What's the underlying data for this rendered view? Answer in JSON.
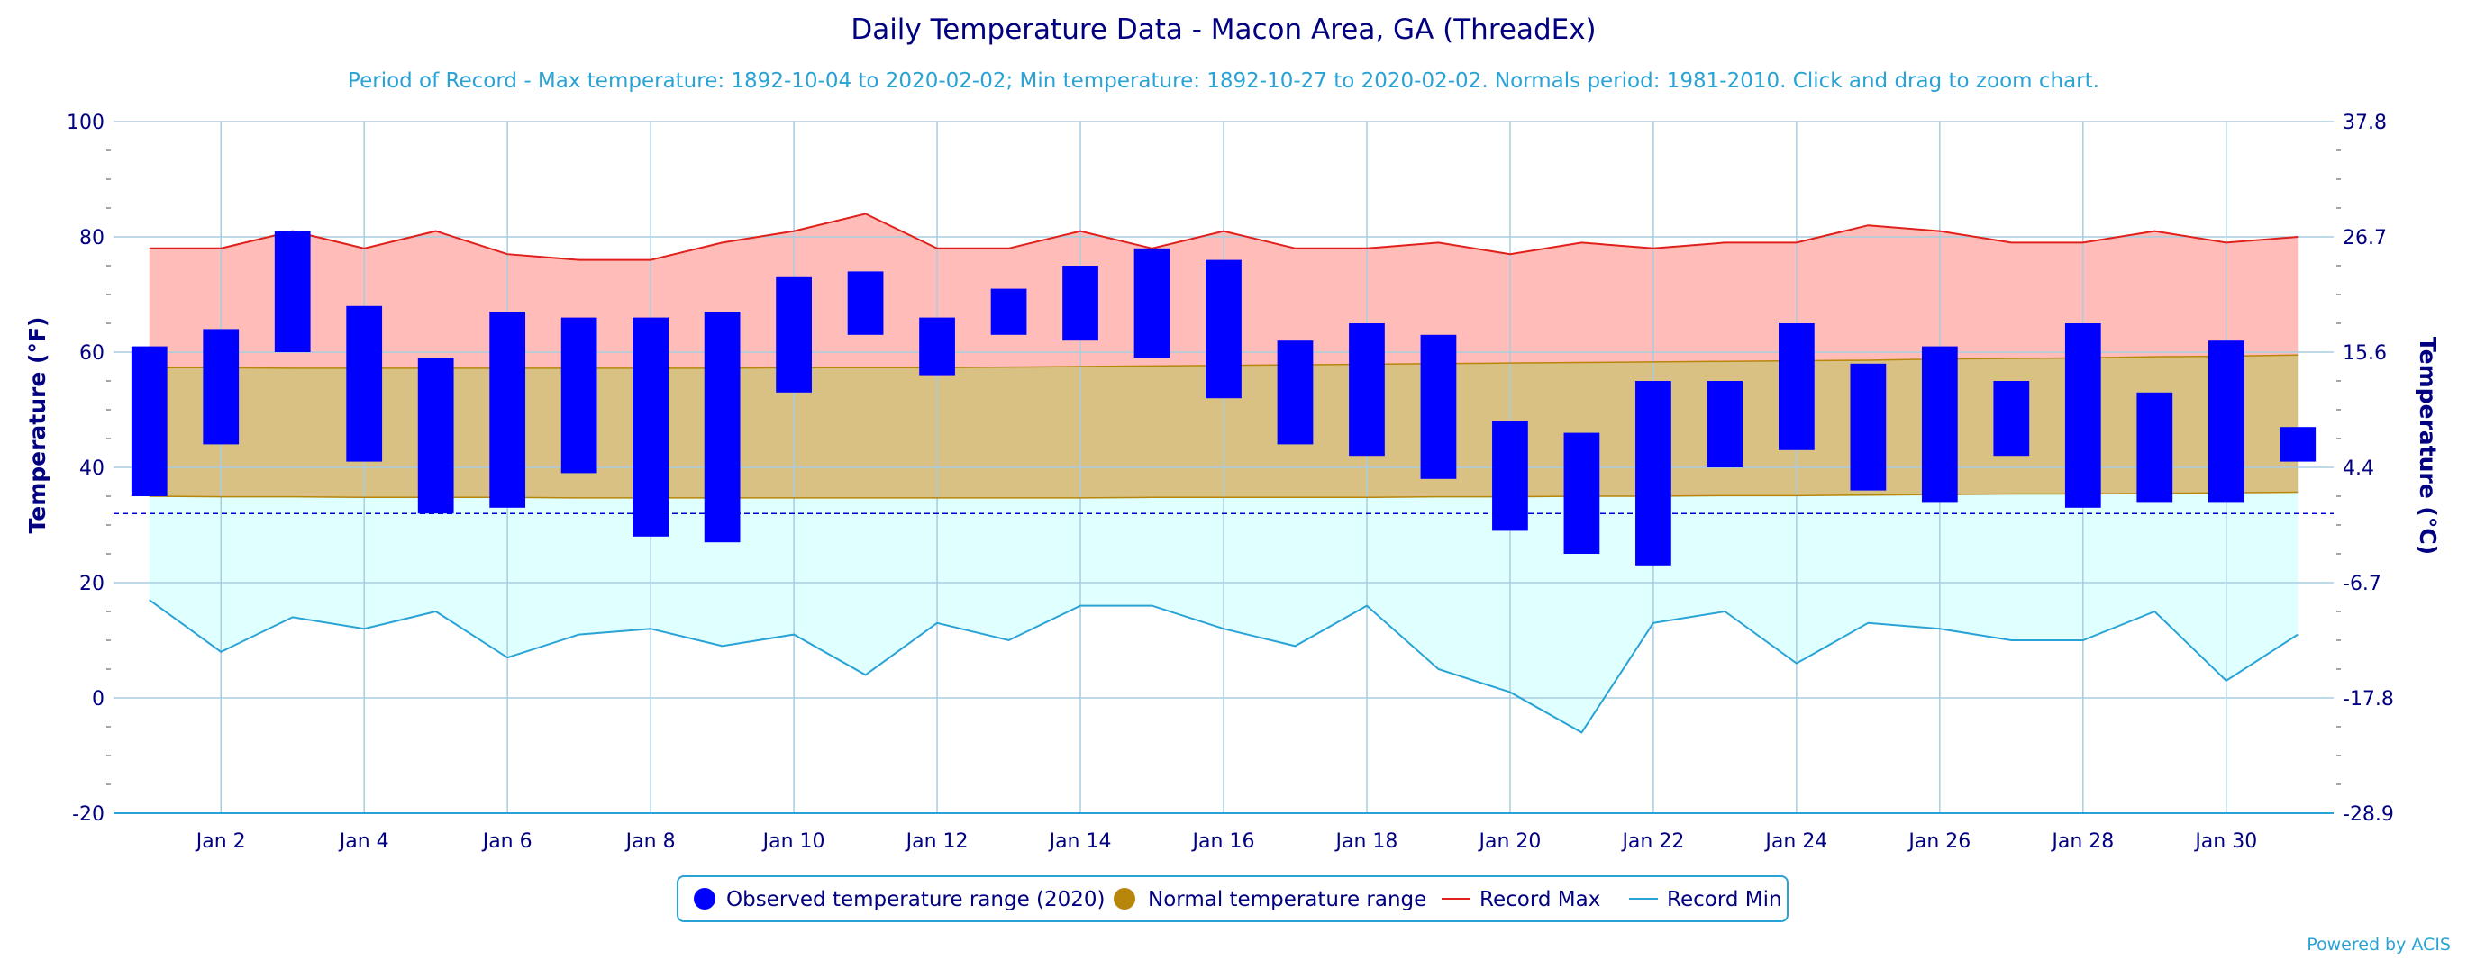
{
  "colors": {
    "observed": "#0000ff",
    "normal": "#b8860b",
    "normal_fill": "#d9c083",
    "record_max": "#e0201b",
    "record_max_fill": "#ffbcb8",
    "record_min": "#29a3d6",
    "record_min_fill": "#e0ffff",
    "text": "#000080",
    "grid": "#a8cde0"
  },
  "chart_data": {
    "type": "bar",
    "title": "Daily Temperature Data - Macon Area, GA (ThreadEx)",
    "subtitle": "Period of Record - Max temperature: 1892-10-04 to 2020-02-02; Min temperature: 1892-10-27 to 2020-02-02. Normals period: 1981-2010. Click and drag to zoom chart.",
    "ylabel": "Temperature (°F)",
    "ylabel_right": "Temperature (°C)",
    "ylim": [
      -20,
      100
    ],
    "y_ticks": [
      -20,
      0,
      20,
      40,
      60,
      80,
      100
    ],
    "y_right_ticks": [
      "-28.9",
      "-17.8",
      "-6.7",
      "4.4",
      "15.6",
      "26.7",
      "37.8"
    ],
    "x_range": [
      0.5,
      31.5
    ],
    "x_tick_days": [
      2,
      4,
      6,
      8,
      10,
      12,
      14,
      16,
      18,
      20,
      22,
      24,
      26,
      28,
      30
    ],
    "x_tick_labels": [
      "Jan 2",
      "Jan 4",
      "Jan 6",
      "Jan 8",
      "Jan 10",
      "Jan 12",
      "Jan 14",
      "Jan 16",
      "Jan 18",
      "Jan 20",
      "Jan 22",
      "Jan 24",
      "Jan 26",
      "Jan 28",
      "Jan 30"
    ],
    "freezing_line": 32,
    "grid": true,
    "legend_position": "bottom-center",
    "days": [
      1,
      2,
      3,
      4,
      5,
      6,
      7,
      8,
      9,
      10,
      11,
      12,
      13,
      14,
      15,
      16,
      17,
      18,
      19,
      20,
      21,
      22,
      23,
      24,
      25,
      26,
      27,
      28,
      29,
      30,
      31
    ],
    "series": [
      {
        "name": "Observed temperature range (2020)",
        "kind": "range-bar",
        "low": [
          35,
          44,
          60,
          41,
          32,
          33,
          39,
          28,
          27,
          53,
          63,
          56,
          63,
          62,
          59,
          52,
          44,
          42,
          38,
          29,
          25,
          23,
          40,
          43,
          36,
          34,
          42,
          33,
          34,
          34,
          41
        ],
        "high": [
          61,
          64,
          81,
          68,
          59,
          67,
          66,
          66,
          67,
          73,
          74,
          66,
          71,
          75,
          78,
          76,
          62,
          65,
          63,
          48,
          46,
          55,
          55,
          65,
          58,
          61,
          55,
          65,
          53,
          62,
          47
        ]
      },
      {
        "name": "Normal temperature range",
        "kind": "range-area",
        "low": [
          35,
          34.9,
          34.9,
          34.8,
          34.8,
          34.8,
          34.7,
          34.7,
          34.7,
          34.7,
          34.7,
          34.7,
          34.7,
          34.7,
          34.8,
          34.8,
          34.8,
          34.8,
          34.9,
          34.9,
          35,
          35,
          35.1,
          35.1,
          35.2,
          35.3,
          35.4,
          35.4,
          35.5,
          35.6,
          35.7
        ],
        "high": [
          57.3,
          57.3,
          57.2,
          57.2,
          57.2,
          57.2,
          57.2,
          57.2,
          57.2,
          57.3,
          57.3,
          57.3,
          57.4,
          57.5,
          57.6,
          57.7,
          57.8,
          57.9,
          58,
          58.1,
          58.2,
          58.3,
          58.4,
          58.5,
          58.6,
          58.8,
          58.9,
          59,
          59.2,
          59.3,
          59.5
        ]
      },
      {
        "name": "Record Max",
        "kind": "line",
        "values": [
          78,
          78,
          81,
          78,
          81,
          77,
          76,
          76,
          79,
          81,
          84,
          78,
          78,
          81,
          78,
          81,
          78,
          78,
          79,
          77,
          79,
          78,
          79,
          79,
          82,
          81,
          79,
          79,
          81,
          79,
          80
        ]
      },
      {
        "name": "Record Min",
        "kind": "line",
        "values": [
          17,
          8,
          14,
          12,
          15,
          7,
          11,
          12,
          9,
          11,
          4,
          13,
          10,
          16,
          16,
          12,
          9,
          16,
          5,
          1,
          -6,
          13,
          15,
          6,
          13,
          12,
          10,
          10,
          15,
          3,
          11
        ]
      }
    ]
  },
  "legend": {
    "observed": "Observed temperature range (2020)",
    "normal": "Normal temperature range",
    "record_max": "Record Max",
    "record_min": "Record Min"
  },
  "credit": "Powered by ACIS"
}
